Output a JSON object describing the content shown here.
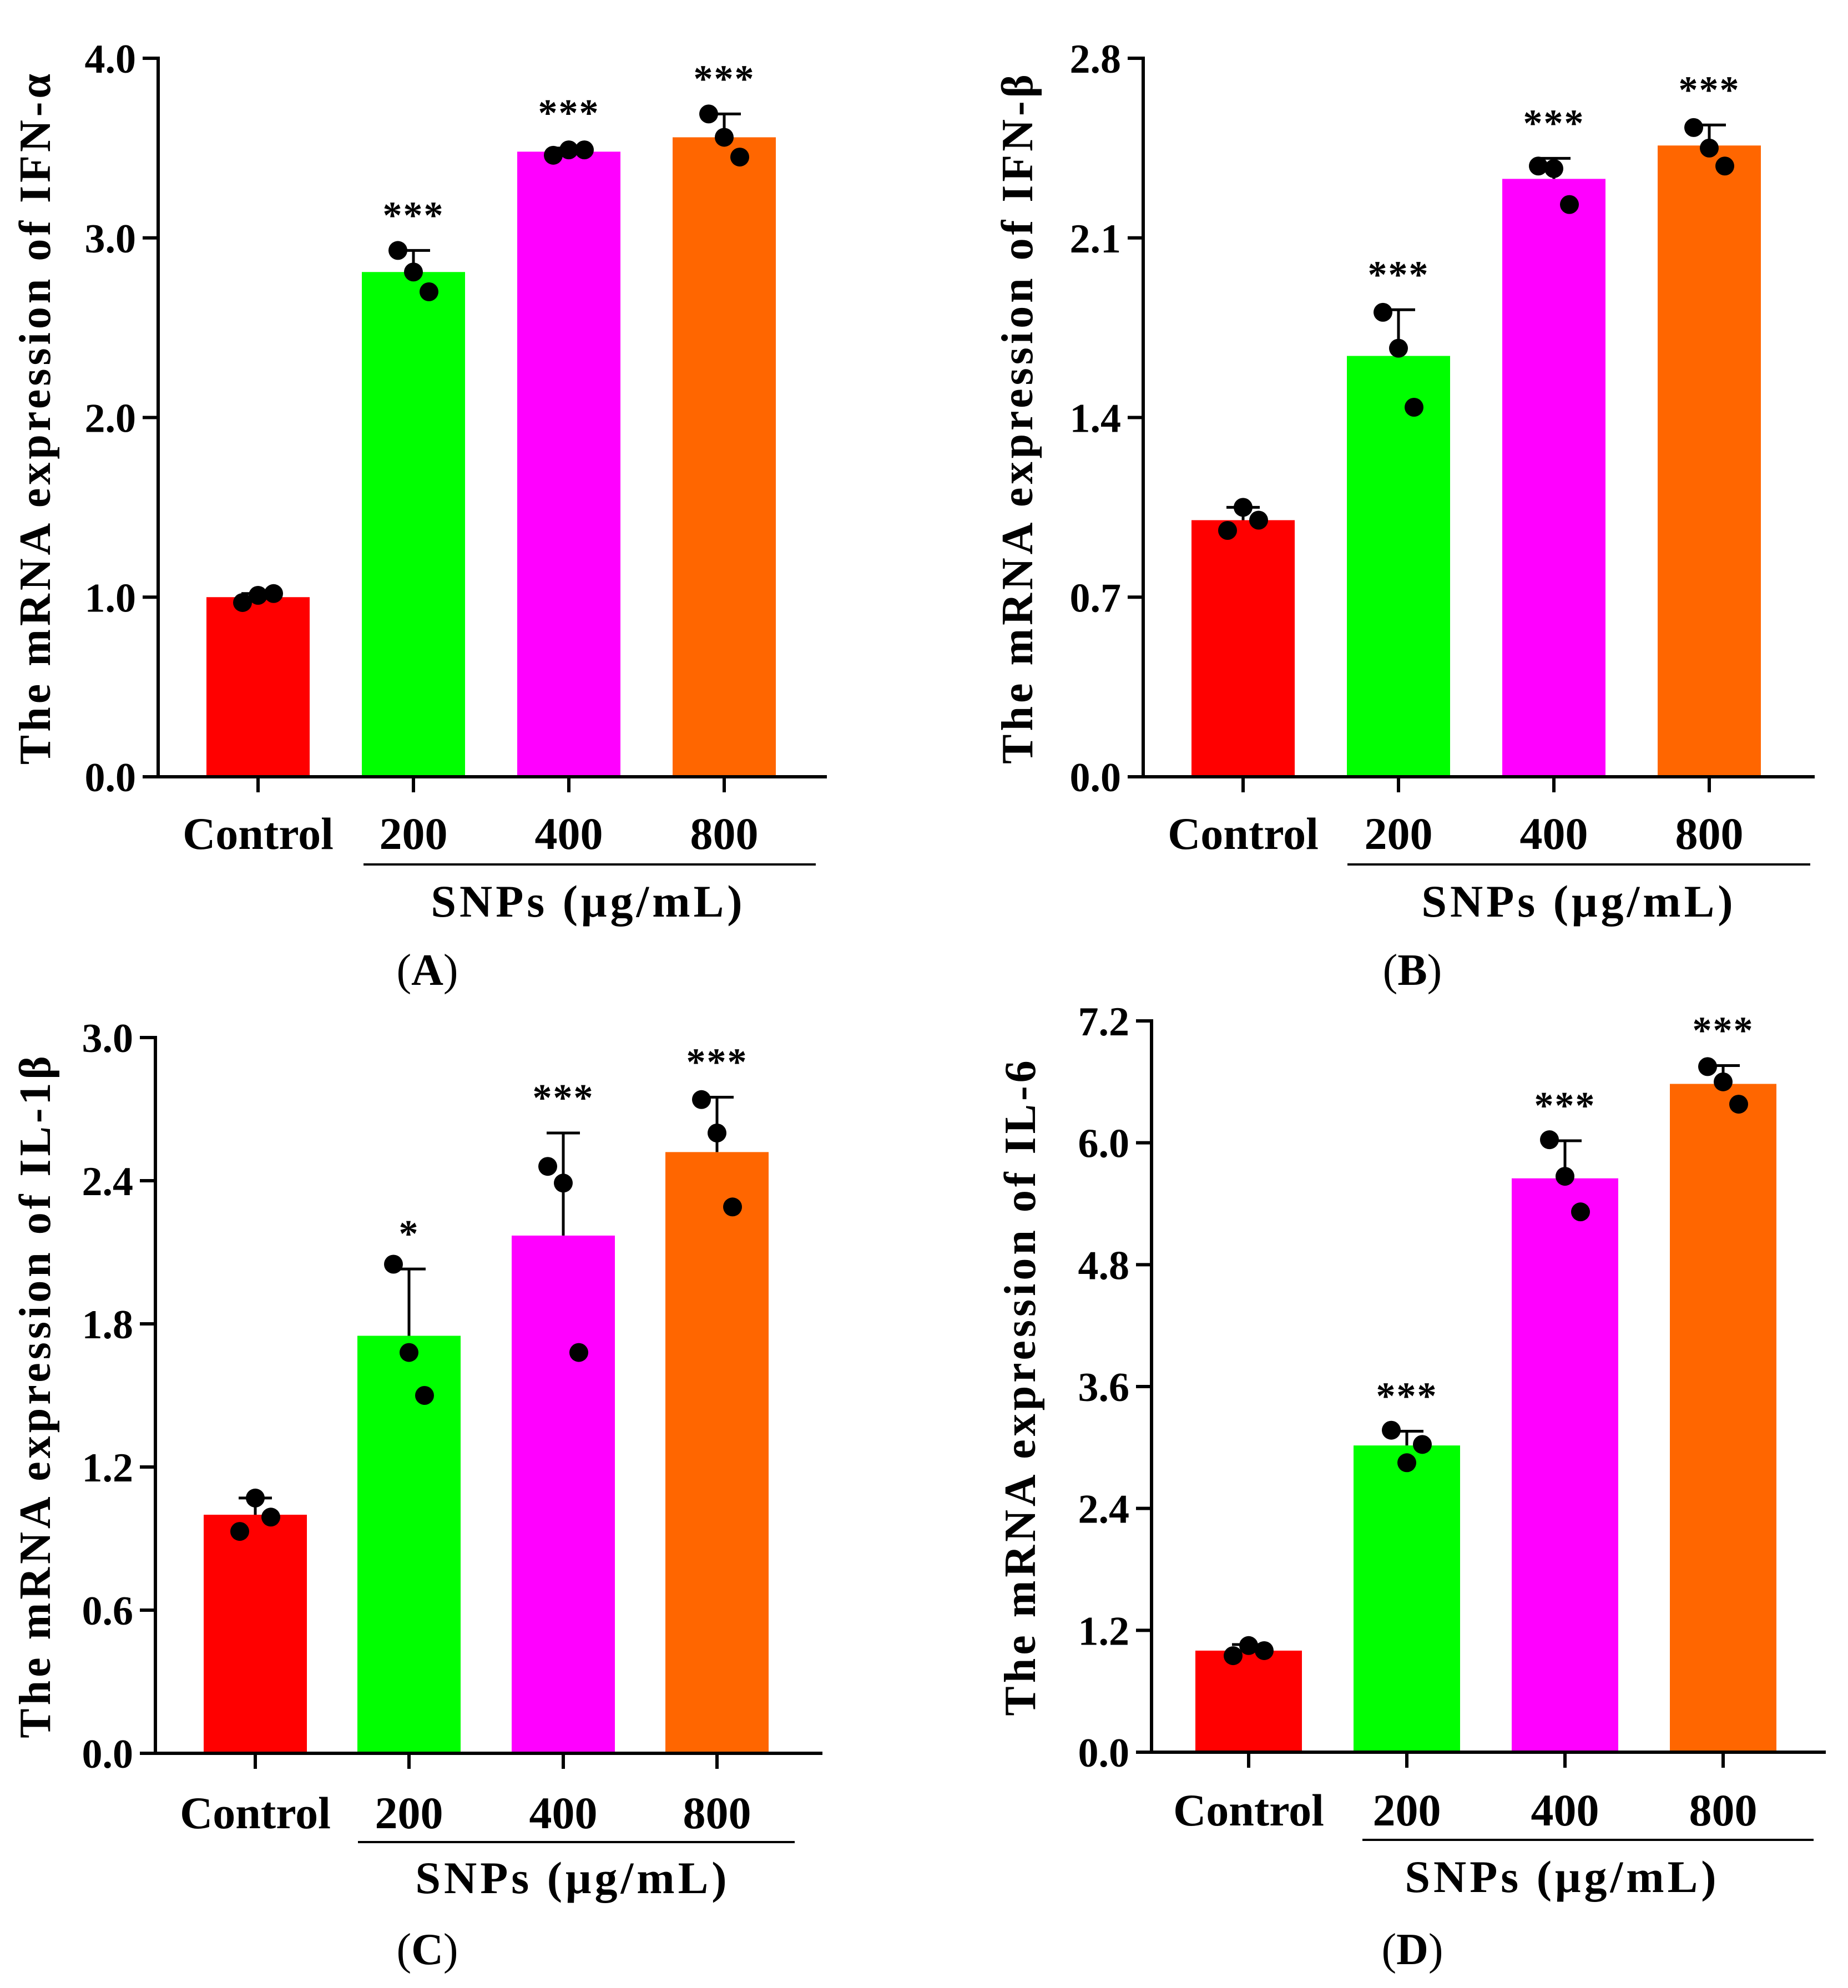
{
  "chart_data": [
    {
      "type": "bar",
      "panel_label": "A",
      "ylabel": "The mRNA expression of IFN-α",
      "ylim": [
        0,
        4.0
      ],
      "yticks": [
        "0.0",
        "1.0",
        "2.0",
        "3.0",
        "4.0"
      ],
      "ytick_values": [
        0,
        1.0,
        2.0,
        3.0,
        4.0
      ],
      "categories": [
        "Control",
        "200",
        "400",
        "800"
      ],
      "group_label": "SNPs (μg/mL)",
      "colors": [
        "#ff0000",
        "#00ff00",
        "#ff00ff",
        "#ff6600"
      ],
      "values": [
        1.0,
        2.81,
        3.48,
        3.56
      ],
      "errors": [
        0.02,
        0.12,
        0.02,
        0.13
      ],
      "points": [
        [
          0.97,
          1.01,
          1.02
        ],
        [
          2.93,
          2.81,
          2.7
        ],
        [
          3.46,
          3.49,
          3.49
        ],
        [
          3.69,
          3.56,
          3.45
        ]
      ],
      "significance": [
        "",
        "***",
        "***",
        "***"
      ]
    },
    {
      "type": "bar",
      "panel_label": "B",
      "ylabel": "The mRNA expression of IFN-β",
      "ylim": [
        0,
        2.8
      ],
      "yticks": [
        "0.0",
        "0.7",
        "1.4",
        "2.1",
        "2.8"
      ],
      "ytick_values": [
        0,
        0.7,
        1.4,
        2.1,
        2.8
      ],
      "categories": [
        "Control",
        "200",
        "400",
        "800"
      ],
      "group_label": "SNPs (μg/mL)",
      "colors": [
        "#ff0000",
        "#00ff00",
        "#ff00ff",
        "#ff6600"
      ],
      "values": [
        1.0,
        1.64,
        2.33,
        2.46
      ],
      "errors": [
        0.05,
        0.18,
        0.08,
        0.08
      ],
      "points": [
        [
          0.96,
          1.05,
          1.0
        ],
        [
          1.81,
          1.67,
          1.44
        ],
        [
          2.38,
          2.37,
          2.23
        ],
        [
          2.53,
          2.45,
          2.38
        ]
      ],
      "significance": [
        "",
        "***",
        "***",
        "***"
      ]
    },
    {
      "type": "bar",
      "panel_label": "C",
      "ylabel": "The mRNA expression of IL-1β",
      "ylim": [
        0,
        3.0
      ],
      "yticks": [
        "0.0",
        "0.6",
        "1.2",
        "1.8",
        "2.4",
        "3.0"
      ],
      "ytick_values": [
        0,
        0.6,
        1.2,
        1.8,
        2.4,
        3.0
      ],
      "categories": [
        "Control",
        "200",
        "400",
        "800"
      ],
      "group_label": "SNPs (μg/mL)",
      "colors": [
        "#ff0000",
        "#00ff00",
        "#ff00ff",
        "#ff6600"
      ],
      "values": [
        1.0,
        1.75,
        2.17,
        2.52
      ],
      "errors": [
        0.07,
        0.28,
        0.43,
        0.23
      ],
      "points": [
        [
          0.93,
          1.07,
          0.99
        ],
        [
          2.05,
          1.68,
          1.5
        ],
        [
          2.46,
          2.39,
          1.68
        ],
        [
          2.74,
          2.6,
          2.29
        ]
      ],
      "significance": [
        "",
        "*",
        "***",
        "***"
      ]
    },
    {
      "type": "bar",
      "panel_label": "D",
      "ylabel": "The mRNA expression of IL-6",
      "ylim": [
        0,
        7.2
      ],
      "yticks": [
        "0.0",
        "1.2",
        "2.4",
        "3.6",
        "4.8",
        "6.0",
        "7.2"
      ],
      "ytick_values": [
        0,
        1.2,
        2.4,
        3.6,
        4.8,
        6.0,
        7.2
      ],
      "categories": [
        "Control",
        "200",
        "400",
        "800"
      ],
      "group_label": "SNPs (μg/mL)",
      "colors": [
        "#ff0000",
        "#00ff00",
        "#ff00ff",
        "#ff6600"
      ],
      "values": [
        1.0,
        3.02,
        5.65,
        6.58
      ],
      "errors": [
        0.06,
        0.14,
        0.37,
        0.18
      ],
      "points": [
        [
          0.95,
          1.05,
          1.0
        ],
        [
          3.17,
          2.85,
          3.03
        ],
        [
          6.03,
          5.67,
          5.32
        ],
        [
          6.75,
          6.6,
          6.38
        ]
      ],
      "significance": [
        "",
        "***",
        "***",
        "***"
      ]
    }
  ]
}
